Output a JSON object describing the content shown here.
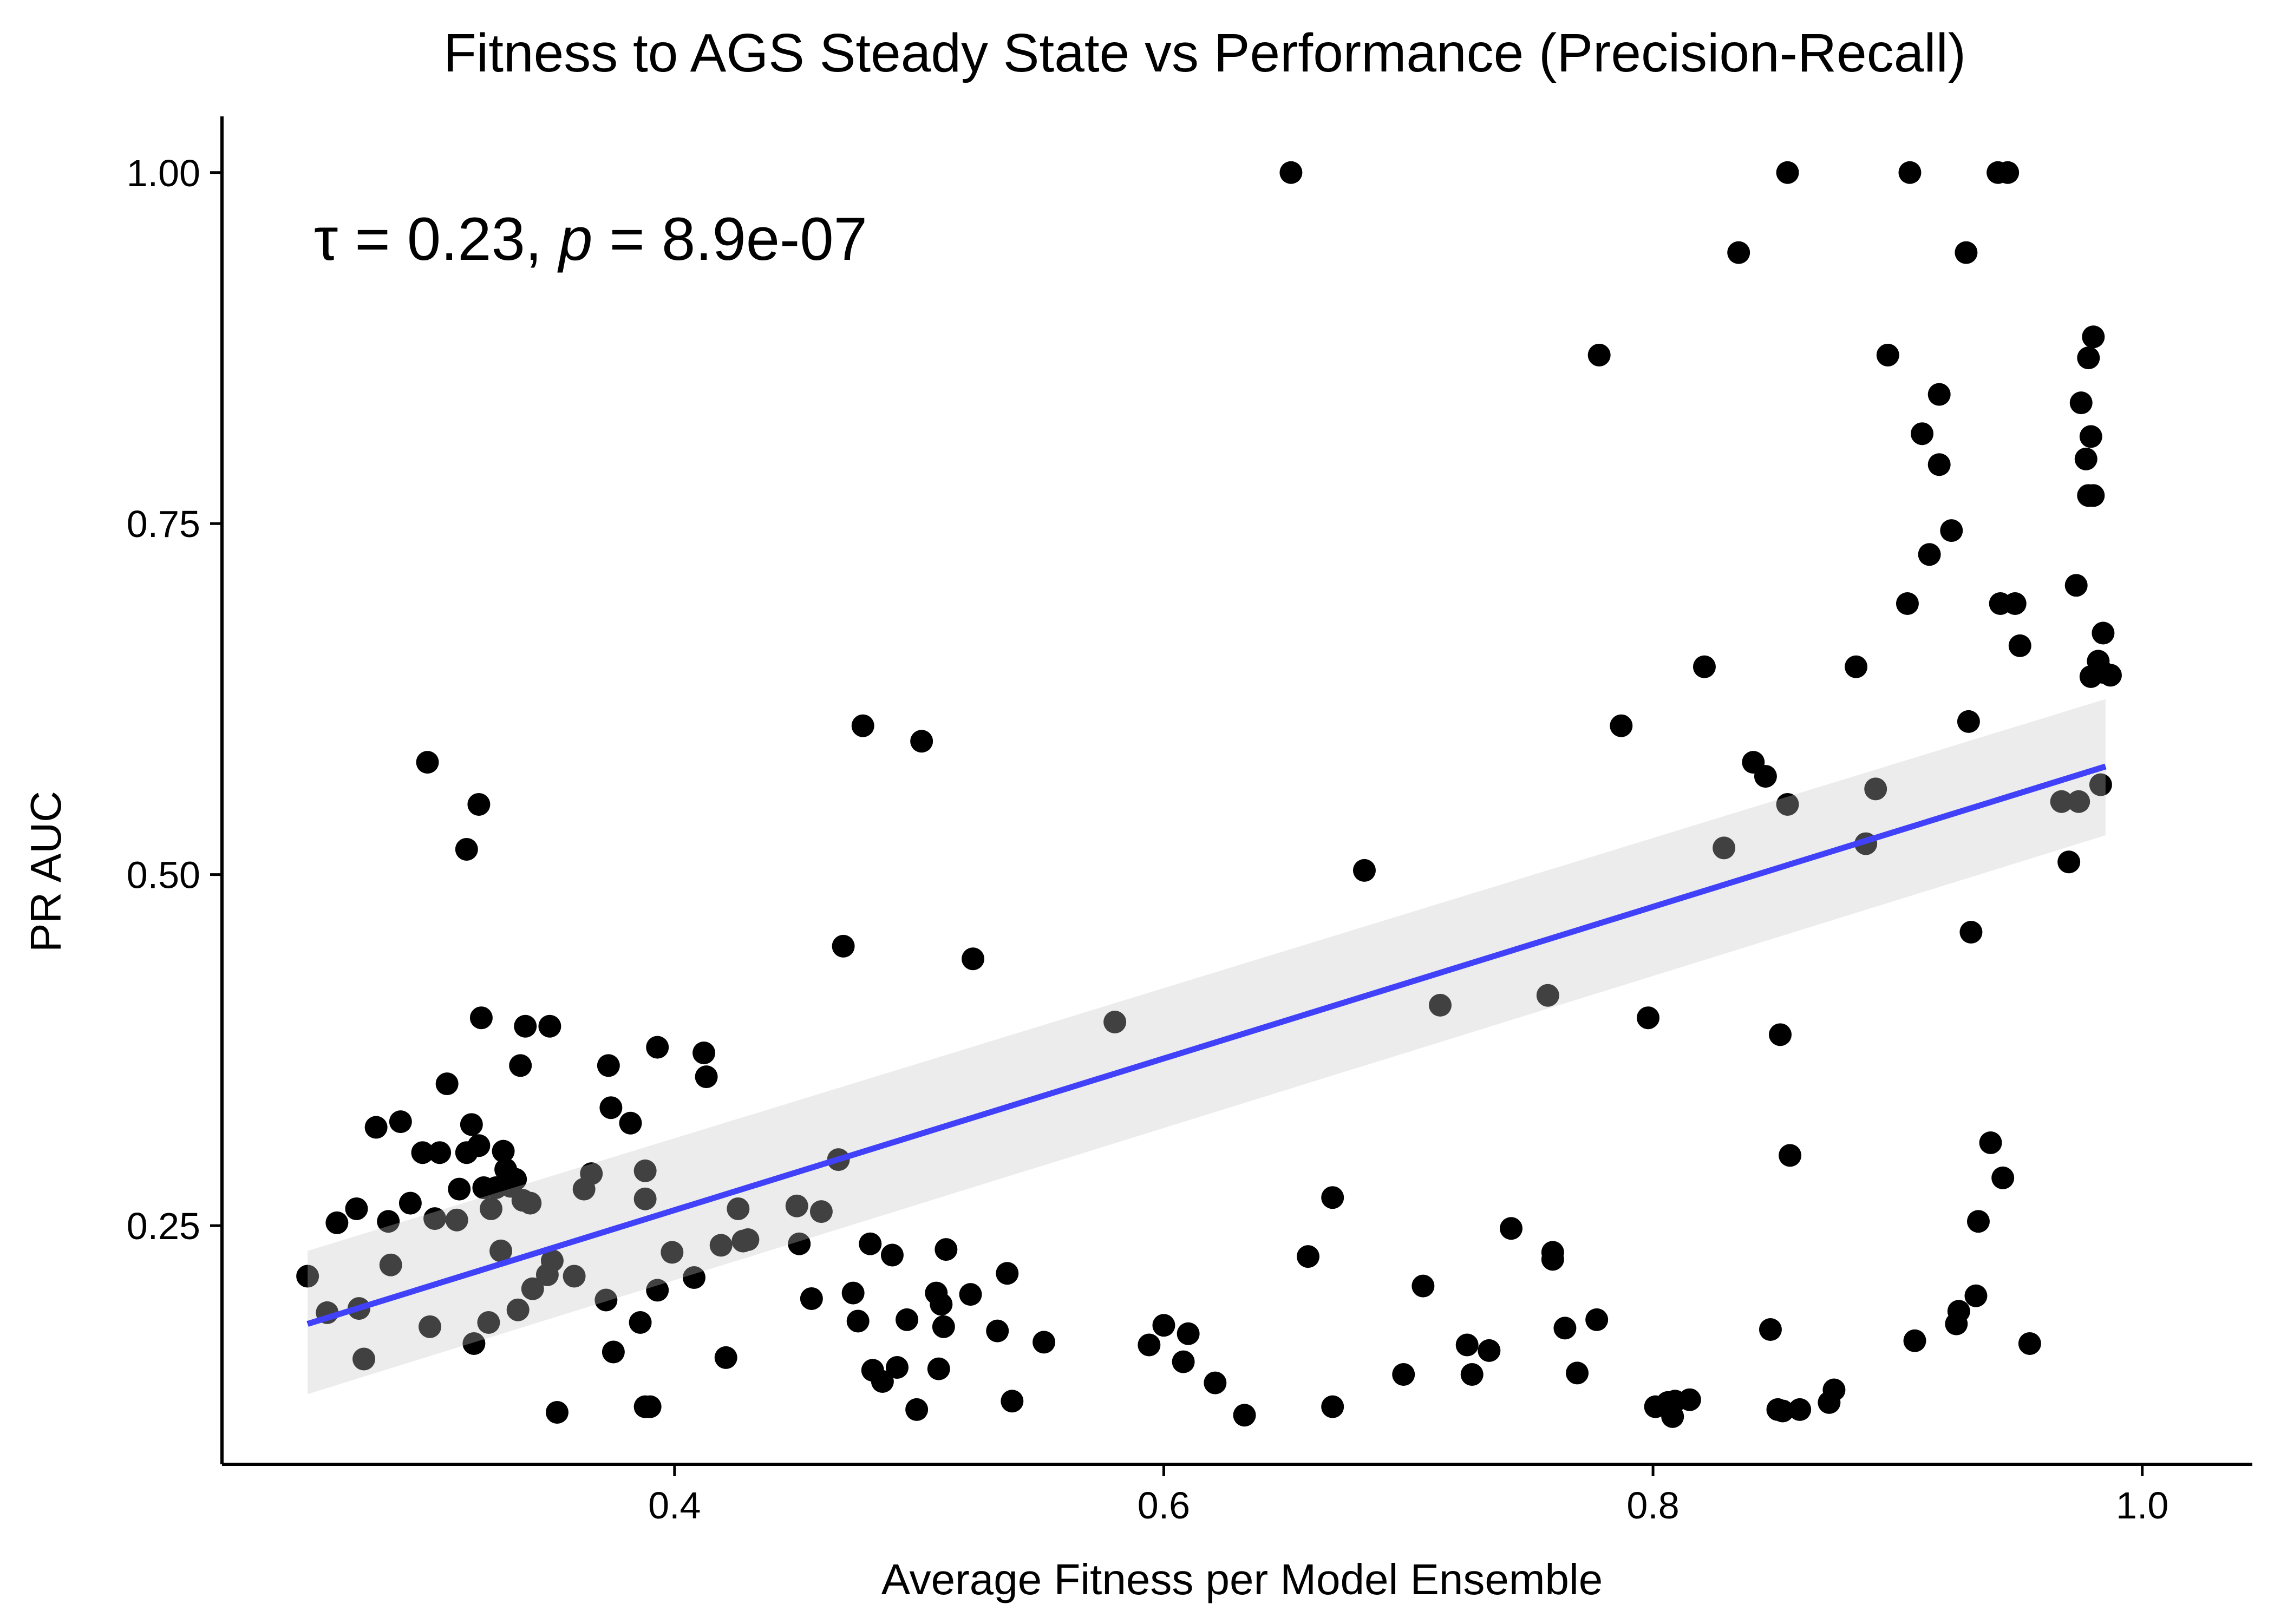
{
  "chart_data": {
    "type": "scatter",
    "title": "Fitness to AGS Steady State vs Performance (Precision-Recall)",
    "xlabel": "Average Fitness per Model Ensemble",
    "ylabel": "PR AUC",
    "xlim": [
      0.215,
      1.045
    ],
    "ylim": [
      0.08,
      1.04
    ],
    "x_ticks": [
      0.4,
      0.6,
      0.8,
      1.0
    ],
    "x_tick_labels": [
      "0.4",
      "0.6",
      "0.8",
      "1.0"
    ],
    "y_ticks": [
      0.25,
      0.5,
      0.75,
      1.0
    ],
    "y_tick_labels": [
      "0.25",
      "0.50",
      "0.75",
      "1.00"
    ],
    "grid": false,
    "legend": "none",
    "annotation": {
      "tau_symbol": "τ",
      "tau_rest": " = 0.23, ",
      "p_symbol": "p",
      "p_rest": " = 8.9e-07"
    },
    "point_color": "#000000",
    "trend_color": "#0000ff",
    "ribbon_color": "#ebebeb",
    "trend": {
      "type": "linear",
      "x": [
        0.25,
        0.985
      ],
      "y": [
        0.18,
        0.577
      ],
      "ci_lower": [
        0.13,
        0.528
      ],
      "ci_upper": [
        0.232,
        0.625
      ]
    },
    "series": [
      {
        "points": [
          [
            0.25,
            0.214
          ],
          [
            0.258,
            0.188
          ],
          [
            0.262,
            0.252
          ],
          [
            0.27,
            0.262
          ],
          [
            0.271,
            0.191
          ],
          [
            0.273,
            0.155
          ],
          [
            0.278,
            0.32
          ],
          [
            0.283,
            0.253
          ],
          [
            0.284,
            0.222
          ],
          [
            0.288,
            0.324
          ],
          [
            0.292,
            0.266
          ],
          [
            0.297,
            0.302
          ],
          [
            0.299,
            0.58
          ],
          [
            0.3,
            0.178
          ],
          [
            0.302,
            0.255
          ],
          [
            0.304,
            0.302
          ],
          [
            0.307,
            0.351
          ],
          [
            0.311,
            0.254
          ],
          [
            0.312,
            0.276
          ],
          [
            0.315,
            0.518
          ],
          [
            0.315,
            0.302
          ],
          [
            0.317,
            0.322
          ],
          [
            0.318,
            0.166
          ],
          [
            0.32,
            0.55
          ],
          [
            0.32,
            0.307
          ],
          [
            0.321,
            0.398
          ],
          [
            0.322,
            0.277
          ],
          [
            0.324,
            0.181
          ],
          [
            0.325,
            0.262
          ],
          [
            0.327,
            0.277
          ],
          [
            0.329,
            0.232
          ],
          [
            0.33,
            0.303
          ],
          [
            0.331,
            0.29
          ],
          [
            0.333,
            0.278
          ],
          [
            0.335,
            0.283
          ],
          [
            0.336,
            0.19
          ],
          [
            0.337,
            0.364
          ],
          [
            0.338,
            0.268
          ],
          [
            0.339,
            0.392
          ],
          [
            0.341,
            0.266
          ],
          [
            0.342,
            0.205
          ],
          [
            0.348,
            0.215
          ],
          [
            0.349,
            0.392
          ],
          [
            0.35,
            0.225
          ],
          [
            0.352,
            0.117
          ],
          [
            0.359,
            0.214
          ],
          [
            0.363,
            0.276
          ],
          [
            0.366,
            0.287
          ],
          [
            0.372,
            0.197
          ],
          [
            0.373,
            0.364
          ],
          [
            0.374,
            0.334
          ],
          [
            0.375,
            0.16
          ],
          [
            0.382,
            0.323
          ],
          [
            0.386,
            0.181
          ],
          [
            0.388,
            0.289
          ],
          [
            0.388,
            0.269
          ],
          [
            0.388,
            0.121
          ],
          [
            0.39,
            0.121
          ],
          [
            0.393,
            0.377
          ],
          [
            0.393,
            0.204
          ],
          [
            0.399,
            0.231
          ],
          [
            0.408,
            0.213
          ],
          [
            0.412,
            0.373
          ],
          [
            0.413,
            0.356
          ],
          [
            0.419,
            0.236
          ],
          [
            0.421,
            0.156
          ],
          [
            0.426,
            0.262
          ],
          [
            0.428,
            0.239
          ],
          [
            0.43,
            0.24
          ],
          [
            0.45,
            0.264
          ],
          [
            0.451,
            0.237
          ],
          [
            0.456,
            0.198
          ],
          [
            0.46,
            0.26
          ],
          [
            0.467,
            0.297
          ],
          [
            0.469,
            0.449
          ],
          [
            0.473,
            0.202
          ],
          [
            0.475,
            0.182
          ],
          [
            0.477,
            0.606
          ],
          [
            0.48,
            0.237
          ],
          [
            0.481,
            0.147
          ],
          [
            0.485,
            0.139
          ],
          [
            0.489,
            0.229
          ],
          [
            0.491,
            0.149
          ],
          [
            0.495,
            0.183
          ],
          [
            0.499,
            0.119
          ],
          [
            0.501,
            0.595
          ],
          [
            0.507,
            0.202
          ],
          [
            0.508,
            0.148
          ],
          [
            0.509,
            0.194
          ],
          [
            0.51,
            0.178
          ],
          [
            0.511,
            0.233
          ],
          [
            0.521,
            0.201
          ],
          [
            0.522,
            0.44
          ],
          [
            0.532,
            0.175
          ],
          [
            0.536,
            0.216
          ],
          [
            0.538,
            0.125
          ],
          [
            0.551,
            0.167
          ],
          [
            0.58,
            0.395
          ],
          [
            0.594,
            0.165
          ],
          [
            0.6,
            0.179
          ],
          [
            0.608,
            0.153
          ],
          [
            0.61,
            0.173
          ],
          [
            0.621,
            0.138
          ],
          [
            0.633,
            0.115
          ],
          [
            0.652,
            1.0
          ],
          [
            0.659,
            0.228
          ],
          [
            0.669,
            0.121
          ],
          [
            0.669,
            0.27
          ],
          [
            0.682,
            0.503
          ],
          [
            0.698,
            0.144
          ],
          [
            0.706,
            0.207
          ],
          [
            0.713,
            0.407
          ],
          [
            0.724,
            0.165
          ],
          [
            0.726,
            0.144
          ],
          [
            0.733,
            0.161
          ],
          [
            0.742,
            0.248
          ],
          [
            0.757,
            0.414
          ],
          [
            0.759,
            0.231
          ],
          [
            0.759,
            0.226
          ],
          [
            0.764,
            0.177
          ],
          [
            0.769,
            0.145
          ],
          [
            0.777,
            0.183
          ],
          [
            0.778,
            0.87
          ],
          [
            0.787,
            0.606
          ],
          [
            0.798,
            0.398
          ],
          [
            0.801,
            0.121
          ],
          [
            0.806,
            0.124
          ],
          [
            0.808,
            0.114
          ],
          [
            0.809,
            0.125
          ],
          [
            0.815,
            0.126
          ],
          [
            0.821,
            0.648
          ],
          [
            0.829,
            0.519
          ],
          [
            0.835,
            0.943
          ],
          [
            0.841,
            0.58
          ],
          [
            0.846,
            0.57
          ],
          [
            0.848,
            0.176
          ],
          [
            0.851,
            0.119
          ],
          [
            0.852,
            0.386
          ],
          [
            0.853,
            0.118
          ],
          [
            0.855,
            1.0
          ],
          [
            0.855,
            0.55
          ],
          [
            0.856,
            0.3
          ],
          [
            0.86,
            0.119
          ],
          [
            0.872,
            0.124
          ],
          [
            0.874,
            0.133
          ],
          [
            0.883,
            0.648
          ],
          [
            0.887,
            0.522
          ],
          [
            0.891,
            0.561
          ],
          [
            0.896,
            0.87
          ],
          [
            0.904,
            0.693
          ],
          [
            0.905,
            1.0
          ],
          [
            0.907,
            0.168
          ],
          [
            0.91,
            0.814
          ],
          [
            0.913,
            0.728
          ],
          [
            0.917,
            0.792
          ],
          [
            0.917,
            0.842
          ],
          [
            0.922,
            0.745
          ],
          [
            0.924,
            0.18
          ],
          [
            0.925,
            0.189
          ],
          [
            0.928,
            0.943
          ],
          [
            0.929,
            0.609
          ],
          [
            0.93,
            0.459
          ],
          [
            0.932,
            0.2
          ],
          [
            0.933,
            0.253
          ],
          [
            0.938,
            0.309
          ],
          [
            0.941,
            1.0
          ],
          [
            0.942,
            0.693
          ],
          [
            0.943,
            0.284
          ],
          [
            0.945,
            1.0
          ],
          [
            0.948,
            0.693
          ],
          [
            0.95,
            0.663
          ],
          [
            0.954,
            0.166
          ],
          [
            0.967,
            0.552
          ],
          [
            0.97,
            0.509
          ],
          [
            0.973,
            0.706
          ],
          [
            0.974,
            0.552
          ],
          [
            0.975,
            0.836
          ],
          [
            0.977,
            0.796
          ],
          [
            0.978,
            0.868
          ],
          [
            0.978,
            0.77
          ],
          [
            0.979,
            0.812
          ],
          [
            0.979,
            0.641
          ],
          [
            0.98,
            0.883
          ],
          [
            0.98,
            0.77
          ],
          [
            0.982,
            0.652
          ],
          [
            0.983,
            0.564
          ],
          [
            0.984,
            0.672
          ],
          [
            0.984,
            0.644
          ],
          [
            0.987,
            0.642
          ]
        ]
      }
    ]
  }
}
